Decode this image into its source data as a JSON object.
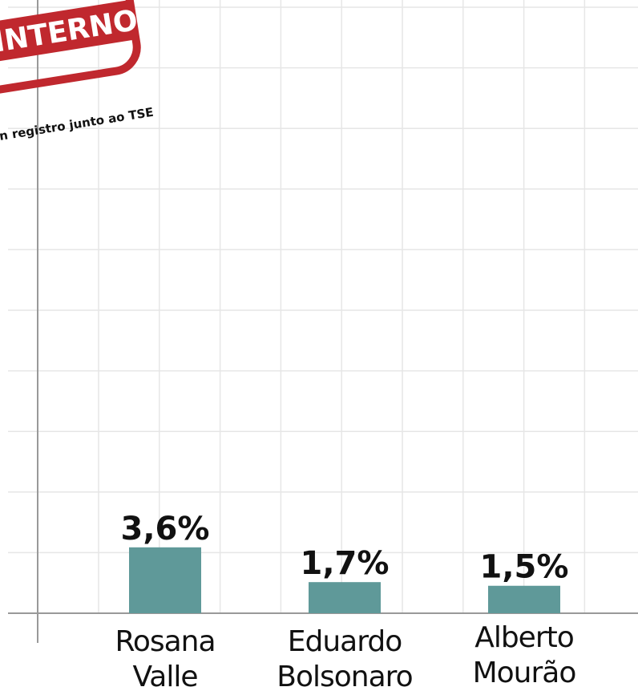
{
  "chart_data": {
    "type": "bar",
    "stamp": "INTERNO",
    "note": "n registro junto ao TSE",
    "categories": [
      "Rosana Valle",
      "Eduardo Bolsonaro",
      "Alberto Mourão"
    ],
    "values": [
      3.6,
      1.7,
      1.5
    ],
    "value_labels": [
      "3,6%",
      "1,7%",
      "1,5%"
    ],
    "color": "#5f9999",
    "ylim": [
      0,
      33.5
    ],
    "grid": true
  }
}
